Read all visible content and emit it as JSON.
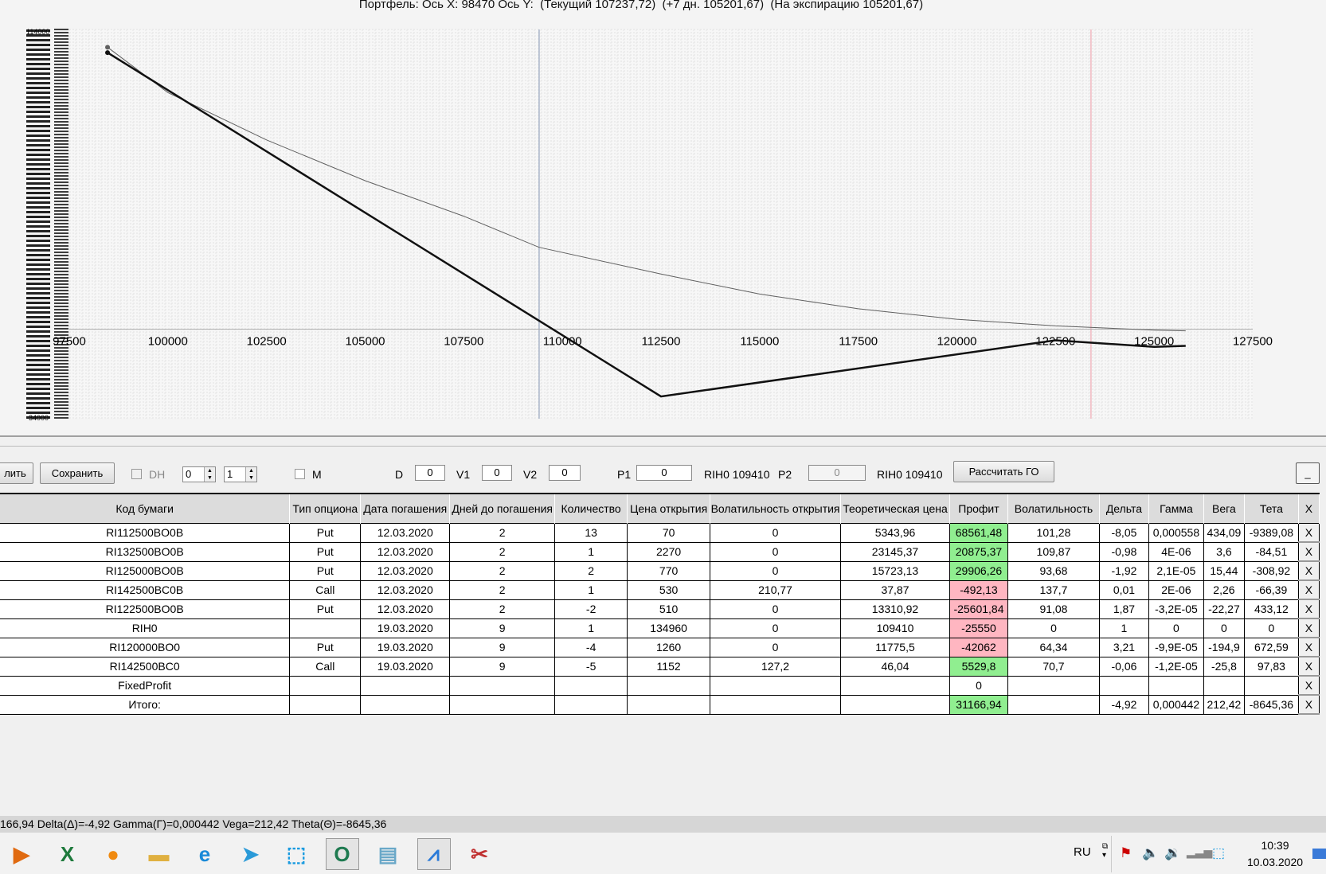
{
  "chart_title": "Портфель: Ось X: 98470 Ось Y:  (Текущий 107237,72)  (+7 дн. 105201,67)  (На экспирацию 105201,67)",
  "chart_data": {
    "type": "line",
    "title": "Портфель: Ось X: 98470 Ось Y:  (Текущий 107237,72)  (+7 дн. 105201,67)  (На экспирацию 105201,67)",
    "xlim": [
      97500,
      127500
    ],
    "ylim": [
      -34000,
      114000
    ],
    "x_ticks": [
      "97500",
      "100000",
      "102500",
      "105000",
      "107500",
      "110000",
      "112500",
      "115000",
      "117500",
      "120000",
      "122500",
      "125000",
      "127500"
    ],
    "y_tick_labels": {
      "top": "114000",
      "bottom": "-34000"
    },
    "grid": true,
    "vertical_markers": [
      {
        "x": 109410,
        "color": "#a8b4c8"
      },
      {
        "x": 123400,
        "color": "#f0b8c0"
      }
    ],
    "series": [
      {
        "style": "current",
        "color": "#606060",
        "points": [
          [
            98470,
            107237.72
          ],
          [
            100000,
            90000
          ],
          [
            102500,
            72000
          ],
          [
            105000,
            56500
          ],
          [
            107500,
            43000
          ],
          [
            109410,
            31166.94
          ],
          [
            112500,
            21000
          ],
          [
            115000,
            13400
          ],
          [
            117500,
            7800
          ],
          [
            120000,
            3800
          ],
          [
            122500,
            1300
          ],
          [
            125000,
            -300
          ],
          [
            125800,
            -600
          ]
        ]
      },
      {
        "style": "expiration",
        "color": "#111111",
        "points": [
          [
            98470,
            105201.67
          ],
          [
            112500,
            -25550
          ],
          [
            122500,
            -4200
          ],
          [
            125000,
            -6700
          ],
          [
            125800,
            -6300
          ]
        ]
      }
    ]
  },
  "toolbar": {
    "delete_label": "лить",
    "save_label": "Сохранить",
    "dh_label": "DH",
    "spin1": "0",
    "spin2": "1",
    "m_label": "M",
    "d_label": "D",
    "d_value": "0",
    "v1_label": "V1",
    "v1_value": "0",
    "v2_label": "V2",
    "v2_value": "0",
    "p1_label": "P1",
    "p1_value": "0",
    "p1_ref": "RIH0 109410",
    "p2_label": "P2",
    "p2_value": "0",
    "p2_ref": "RIH0 109410",
    "calc_label": "Рассчитать ГО",
    "minimize_label": "_"
  },
  "table": {
    "headers": [
      "Код бумаги",
      "Тип опциона",
      "Дата погашения",
      "Дней до погашения",
      "Количество",
      "Цена открытия",
      "Волатильность открытия",
      "Теоретическая цена",
      "Профит",
      "Волатильность",
      "Дельта",
      "Гамма",
      "Вега",
      "Тета",
      "X"
    ],
    "rows": [
      [
        "RI112500BO0B",
        "Put",
        "12.03.2020",
        "2",
        "13",
        "70",
        "0",
        "5343,96",
        "68561,48",
        "101,28",
        "-8,05",
        "0,000558",
        "434,09",
        "-9389,08",
        "X"
      ],
      [
        "RI132500BO0B",
        "Put",
        "12.03.2020",
        "2",
        "1",
        "2270",
        "0",
        "23145,37",
        "20875,37",
        "109,87",
        "-0,98",
        "4E-06",
        "3,6",
        "-84,51",
        "X"
      ],
      [
        "RI125000BO0B",
        "Put",
        "12.03.2020",
        "2",
        "2",
        "770",
        "0",
        "15723,13",
        "29906,26",
        "93,68",
        "-1,92",
        "2,1E-05",
        "15,44",
        "-308,92",
        "X"
      ],
      [
        "RI142500BC0B",
        "Call",
        "12.03.2020",
        "2",
        "1",
        "530",
        "210,77",
        "37,87",
        "-492,13",
        "137,7",
        "0,01",
        "2E-06",
        "2,26",
        "-66,39",
        "X"
      ],
      [
        "RI122500BO0B",
        "Put",
        "12.03.2020",
        "2",
        "-2",
        "510",
        "0",
        "13310,92",
        "-25601,84",
        "91,08",
        "1,87",
        "-3,2E-05",
        "-22,27",
        "433,12",
        "X"
      ],
      [
        "RIH0",
        "",
        "19.03.2020",
        "9",
        "1",
        "134960",
        "0",
        "109410",
        "-25550",
        "0",
        "1",
        "0",
        "0",
        "0",
        "X"
      ],
      [
        "RI120000BO0",
        "Put",
        "19.03.2020",
        "9",
        "-4",
        "1260",
        "0",
        "11775,5",
        "-42062",
        "64,34",
        "3,21",
        "-9,9E-05",
        "-194,9",
        "672,59",
        "X"
      ],
      [
        "RI142500BC0",
        "Call",
        "19.03.2020",
        "9",
        "-5",
        "1152",
        "127,2",
        "46,04",
        "5529,8",
        "70,7",
        "-0,06",
        "-1,2E-05",
        "-25,8",
        "97,83",
        "X"
      ],
      [
        "FixedProfit",
        "",
        "",
        "",
        "",
        "",
        "",
        "",
        "0",
        "",
        "",
        "",
        "",
        "",
        "X"
      ],
      [
        "Итого:",
        "",
        "",
        "",
        "",
        "",
        "",
        "",
        "31166,94",
        "",
        "-4,92",
        "0,000442",
        "212,42",
        "-8645,36",
        "X"
      ]
    ]
  },
  "status_text": "166,94 Delta(Δ)=-4,92 Gamma(Γ)=0,000442 Vega=212,42 Theta(Θ)=-8645,36",
  "taskbar": {
    "apps": [
      "media-player",
      "excel",
      "gom-player",
      "file-explorer",
      "internet-explorer",
      "telegram",
      "screenshot-tool",
      "quik",
      "notepad",
      "options-app",
      "snipping-tool"
    ],
    "lang": "RU",
    "time": "10:39",
    "date": "10.03.2020"
  },
  "colors": {
    "profit_positive": "#90ee90",
    "profit_negative": "#ffb6c1"
  }
}
